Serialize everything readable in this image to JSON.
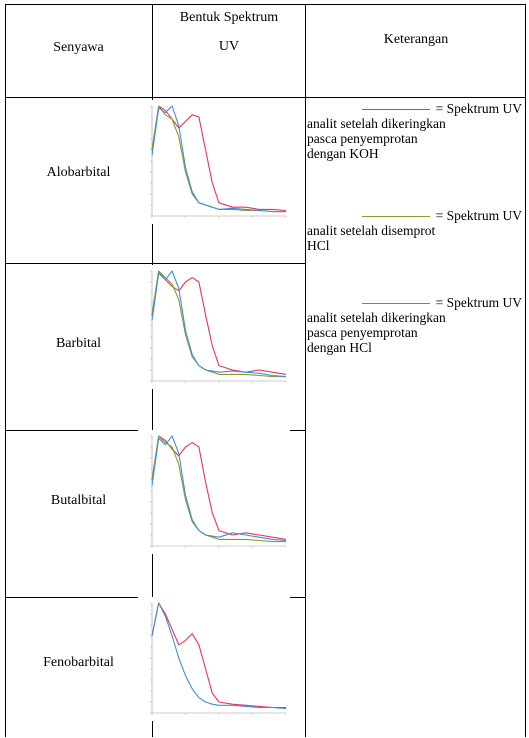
{
  "table": {
    "headers": {
      "compound": "Senyawa",
      "spectrum_line1": "Bentuk Spektrum",
      "spectrum_line2": "UV",
      "notes": "Keterangan"
    },
    "rows": [
      {
        "compound": "Alobarbital"
      },
      {
        "compound": "Barbital"
      },
      {
        "compound": "Butalbital"
      },
      {
        "compound": "Fenobarbital"
      }
    ]
  },
  "legend": [
    {
      "color": "#e8345a",
      "label": "= Spektrum UV",
      "lines": [
        "analit setelah dikeringkan",
        "pasca penyemprotan",
        "dengan KOH"
      ]
    },
    {
      "color": "#8a9a2a",
      "label": "= Spektrum UV",
      "lines": [
        "analit setelah disemprot",
        "HCl"
      ]
    },
    {
      "color": "#3f8fd8",
      "label": "= Spektrum UV",
      "lines": [
        "analit setelah dikeringkan",
        "pasca penyemprotan",
        "dengan HCl"
      ]
    }
  ],
  "colors": {
    "koh": "#e8345a",
    "disemprot_hcl": "#8a9a2a",
    "dikeringkan_hcl": "#3f8fd8"
  },
  "chart_data": [
    {
      "type": "line",
      "compound": "Alobarbital",
      "x": [
        200,
        210,
        220,
        230,
        240,
        250,
        260,
        270,
        280,
        290,
        300,
        320,
        340,
        360,
        380,
        400
      ],
      "series": [
        {
          "values": [
            60,
            100,
            96,
            88,
            80,
            86,
            92,
            90,
            60,
            30,
            12,
            8,
            8,
            6,
            6,
            5
          ]
        },
        {
          "values": [
            60,
            100,
            92,
            88,
            72,
            40,
            20,
            12,
            10,
            8,
            6,
            6,
            5,
            5,
            4,
            4
          ]
        },
        {
          "values": [
            55,
            98,
            94,
            100,
            82,
            44,
            22,
            12,
            10,
            8,
            6,
            7,
            6,
            5,
            4,
            4
          ]
        }
      ]
    },
    {
      "type": "line",
      "compound": "Barbital",
      "x": [
        200,
        210,
        220,
        230,
        240,
        250,
        260,
        270,
        280,
        290,
        300,
        320,
        340,
        360,
        380,
        400
      ],
      "series": [
        {
          "values": [
            60,
            100,
            92,
            86,
            82,
            90,
            94,
            90,
            60,
            32,
            14,
            10,
            8,
            10,
            8,
            6
          ]
        },
        {
          "values": [
            60,
            100,
            94,
            88,
            74,
            42,
            22,
            14,
            10,
            8,
            6,
            6,
            6,
            5,
            4,
            4
          ]
        },
        {
          "values": [
            55,
            98,
            92,
            100,
            84,
            46,
            24,
            14,
            10,
            9,
            8,
            9,
            8,
            7,
            5,
            4
          ]
        }
      ]
    },
    {
      "type": "line",
      "compound": "Butalbital",
      "x": [
        200,
        210,
        220,
        230,
        240,
        250,
        260,
        270,
        280,
        290,
        300,
        320,
        340,
        360,
        380,
        400
      ],
      "series": [
        {
          "values": [
            60,
            100,
            96,
            88,
            82,
            90,
            94,
            90,
            58,
            30,
            14,
            10,
            12,
            10,
            8,
            6
          ]
        },
        {
          "values": [
            60,
            100,
            94,
            90,
            74,
            42,
            22,
            14,
            10,
            8,
            6,
            6,
            6,
            5,
            4,
            4
          ]
        },
        {
          "values": [
            55,
            98,
            92,
            100,
            84,
            46,
            24,
            14,
            10,
            9,
            8,
            12,
            10,
            8,
            6,
            5
          ]
        }
      ]
    },
    {
      "type": "line",
      "compound": "Fenobarbital",
      "x": [
        200,
        210,
        220,
        230,
        240,
        250,
        260,
        270,
        280,
        290,
        300,
        320,
        340,
        360,
        380,
        400
      ],
      "series": [
        {
          "values": [
            70,
            100,
            90,
            76,
            62,
            66,
            72,
            62,
            40,
            18,
            10,
            8,
            7,
            6,
            5,
            5
          ]
        },
        {
          "values": [
            70,
            100,
            88,
            70,
            50,
            34,
            22,
            14,
            10,
            8,
            7,
            7,
            6,
            5,
            5,
            4
          ]
        }
      ]
    }
  ]
}
